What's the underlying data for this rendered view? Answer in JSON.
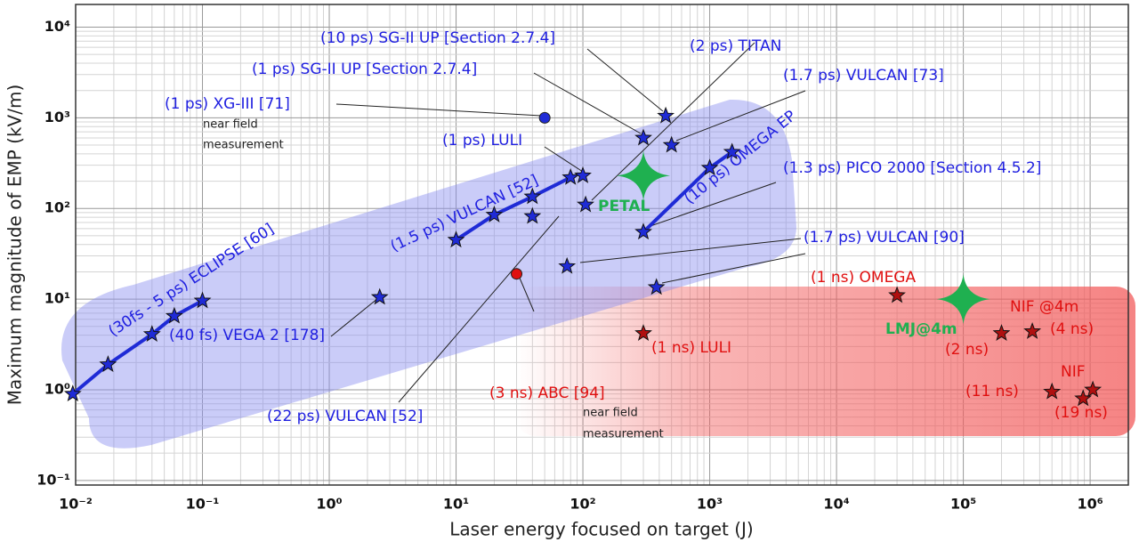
{
  "chart_data": {
    "type": "scatter",
    "x_label": "Laser energy focused on target (J)",
    "y_label": "Maximum magnitude of EMP (kV/m)",
    "log_x": true,
    "log_y": true,
    "grid": true,
    "minor_grid": true,
    "xlim": [
      0.01,
      2000000
    ],
    "ylim": [
      0.089,
      17800
    ],
    "xticks": [
      {
        "value": 0.01,
        "label": "10⁻²"
      },
      {
        "value": 0.1,
        "label": "10⁻¹"
      },
      {
        "value": 1,
        "label": "10⁰"
      },
      {
        "value": 10,
        "label": "10¹"
      },
      {
        "value": 100,
        "label": "10²"
      },
      {
        "value": 1000,
        "label": "10³"
      },
      {
        "value": 10000,
        "label": "10⁴"
      },
      {
        "value": 100000,
        "label": "10⁵"
      },
      {
        "value": 1000000,
        "label": "10⁶"
      }
    ],
    "yticks": [
      {
        "value": 0.1,
        "label": "10⁻¹"
      },
      {
        "value": 1,
        "label": "10⁰"
      },
      {
        "value": 10,
        "label": "10¹"
      },
      {
        "value": 100,
        "label": "10²"
      },
      {
        "value": 1000,
        "label": "10³"
      },
      {
        "value": 10000,
        "label": "10⁴"
      }
    ],
    "series": [
      {
        "color": "#1f2bd6",
        "marker": "star",
        "line": true,
        "x": [
          0.0095,
          0.018,
          0.04,
          0.06,
          0.1
        ],
        "y": [
          0.9,
          1.9,
          4.1,
          6.5,
          9.6
        ]
      },
      {
        "color": "#1f2bd6",
        "marker": "star",
        "line": true,
        "x": [
          10,
          20,
          40,
          80
        ],
        "y": [
          45,
          85,
          135,
          220
        ]
      },
      {
        "color": "#1f2bd6",
        "marker": "star",
        "line": true,
        "x": [
          300,
          1000,
          1500
        ],
        "y": [
          55,
          280,
          420
        ]
      },
      {
        "color": "#1f2bd6",
        "marker": "star",
        "line": false,
        "x": [
          2.5,
          40,
          75,
          100,
          105,
          300,
          450,
          500,
          380
        ],
        "y": [
          10.5,
          82,
          23,
          230,
          110,
          600,
          1050,
          500,
          13.5
        ]
      },
      {
        "color": "#1f2bd6",
        "marker": "circle",
        "line": false,
        "x": [
          50
        ],
        "y": [
          1000
        ]
      },
      {
        "color": "#e01010",
        "marker": "circle",
        "line": false,
        "x": [
          30
        ],
        "y": [
          19
        ]
      },
      {
        "color": "#b01010",
        "marker": "star",
        "line": false,
        "x": [
          300,
          30000,
          200000,
          350000,
          500000,
          880000,
          1050000
        ],
        "y": [
          4.2,
          11,
          4.2,
          4.4,
          0.95,
          0.8,
          1.0
        ]
      },
      {
        "color": "#1fb050",
        "marker": "cross",
        "line": false,
        "x": [
          300,
          100000
        ],
        "y": [
          230,
          10
        ]
      }
    ],
    "annotations": [
      {
        "text": "(10 ps) SG-II UP [Section 2.7.4]",
        "color": "#2020e0"
      },
      {
        "text": "(2 ps) TITAN",
        "color": "#2020e0"
      },
      {
        "text": "(1 ps) SG-II UP [Section 2.7.4]",
        "color": "#2020e0"
      },
      {
        "text": "(1.7 ps) VULCAN [73]",
        "color": "#2020e0"
      },
      {
        "text": "(1 ps) XG-III [71]",
        "color": "#2020e0"
      },
      {
        "text": "near field",
        "color": "#222222"
      },
      {
        "text": "measurement",
        "color": "#222222"
      },
      {
        "text": "(1 ps) LULI",
        "color": "#2020e0"
      },
      {
        "text": "(1.3 ps) PICO 2000 [Section 4.5.2]",
        "color": "#2020e0"
      },
      {
        "text": "PETAL",
        "color": "#1fb050"
      },
      {
        "text": "(1.7 ps) VULCAN [90]",
        "color": "#2020e0"
      },
      {
        "text": "(1 ns) OMEGA",
        "color": "#e01010"
      },
      {
        "text": "NIF @4m",
        "color": "#e01010"
      },
      {
        "text": "LMJ@4m",
        "color": "#1fb050"
      },
      {
        "text": "(4 ns)",
        "color": "#e01010"
      },
      {
        "text": "(40 fs) VEGA 2 [178]",
        "color": "#2020e0"
      },
      {
        "text": "(1 ns) LULI",
        "color": "#e01010"
      },
      {
        "text": "(2 ns)",
        "color": "#e01010"
      },
      {
        "text": "NIF",
        "color": "#e01010"
      },
      {
        "text": "(3 ns) ABC [94]",
        "color": "#e01010"
      },
      {
        "text": "(11 ns)",
        "color": "#e01010"
      },
      {
        "text": "near field",
        "color": "#222222"
      },
      {
        "text": "(19 ns)",
        "color": "#e01010"
      },
      {
        "text": "measurement",
        "color": "#222222"
      },
      {
        "text": "(22 ps) VULCAN [52]",
        "color": "#2020e0"
      },
      {
        "text": "(30fs - 5 ps) ECLIPSE [60]",
        "color": "#2020e0"
      },
      {
        "text": "(1.5 ps) VULCAN [52]",
        "color": "#2020e0"
      },
      {
        "text": "(10 ps) OMEGA EP",
        "color": "#2020e0"
      }
    ]
  }
}
